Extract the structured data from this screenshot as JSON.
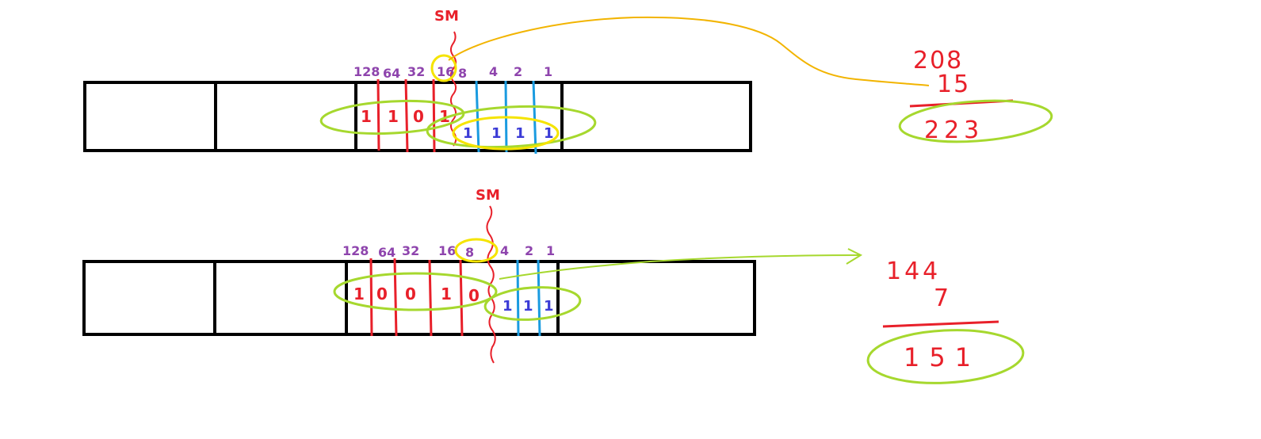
{
  "diagram1": {
    "sm_label": "SM",
    "weights": [
      "128",
      "64",
      "32",
      "16",
      "8",
      "4",
      "2",
      "1"
    ],
    "network_bits": [
      "1",
      "1",
      "0",
      "1"
    ],
    "host_bits": [
      "1",
      "1",
      "1",
      "1"
    ],
    "sum": {
      "a": "208",
      "b": "15",
      "result": "223"
    }
  },
  "diagram2": {
    "sm_label": "SM",
    "weights": [
      "128",
      "64",
      "32",
      "16",
      "8",
      "4",
      "2",
      "1"
    ],
    "network_bits": [
      "1",
      "0",
      "0",
      "1",
      "0"
    ],
    "host_bits": [
      "1",
      "1",
      "1"
    ],
    "sum": {
      "a": "144",
      "b": "7",
      "result": "151"
    }
  },
  "colors": {
    "box": "#000000",
    "network_divider": "#e8202a",
    "host_divider": "#1a9be0",
    "highlight_yellow": "#f5e400",
    "group_green": "#a6d82e",
    "arrow_orange": "#f2b400",
    "weight_text": "#8e44ad"
  }
}
